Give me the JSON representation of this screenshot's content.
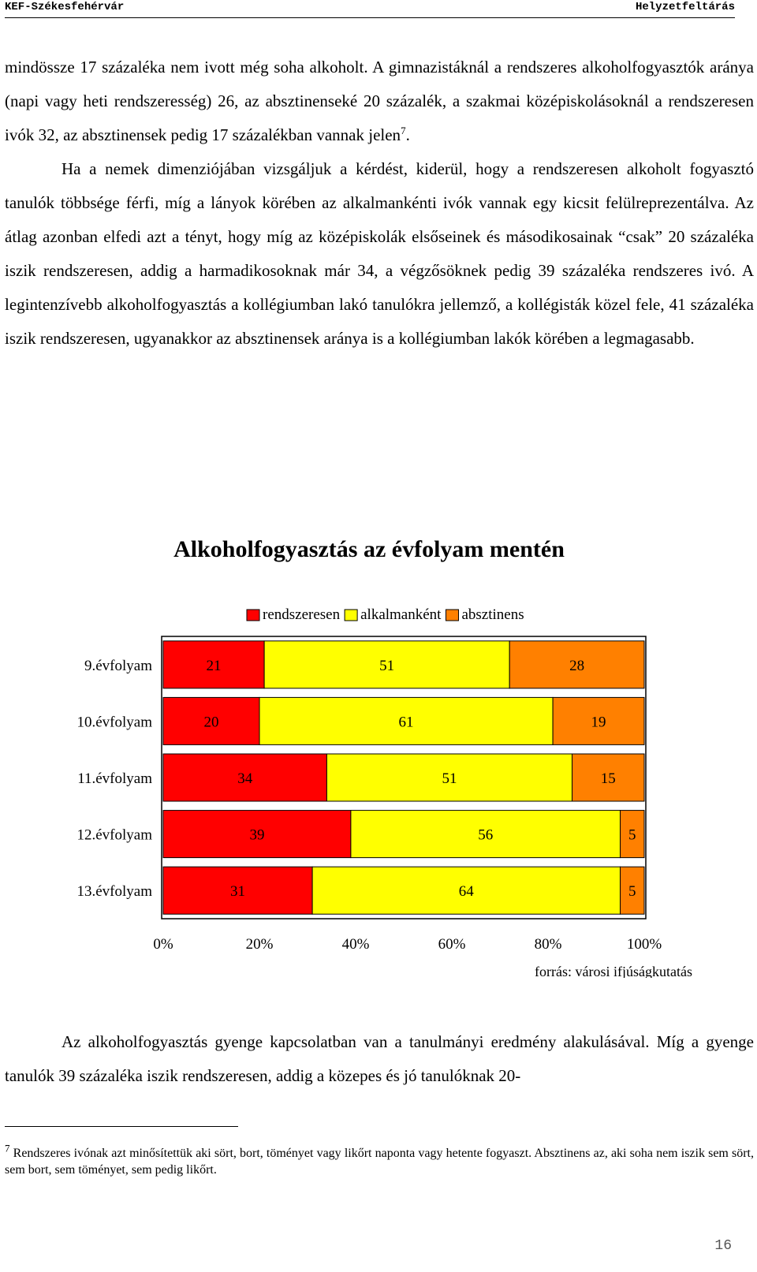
{
  "header": {
    "left": "KEF-Székesfehérvár",
    "right": "Helyzetfeltárás"
  },
  "paragraphs": [
    "mindössze 17 százaléka nem ivott még soha alkoholt. A gimnazistáknál a rendszeres alkoholfogyasztók aránya (napi vagy heti rendszeresség) 26, az absztinenseké 20 százalék, a szakmai középiskolásoknál a rendszeresen ivók 32, az absztinensek pedig 17 százalékban vannak jelen",
    "Ha a nemek dimenziójában vizsgáljuk a kérdést, kiderül, hogy a rendszeresen alkoholt fogyasztó tanulók többsége férfi, míg a lányok körében az alkalmankénti ivók vannak egy kicsit felülreprezentálva. Az átlag azonban elfedi azt a tényt, hogy míg az középiskolák elsőseinek és másodikosainak “csak” 20 százaléka iszik rendszeresen, addig a harmadikosoknak már 34, a végzősöknek pedig 39 százaléka rendszeres ivó. A legintenzívebb alkoholfogyasztás a kollégiumban lakó tanulókra jellemző, a kollégisták közel fele, 41 százaléka iszik rendszeresen, ugyanakkor az absztinensek aránya is a kollégiumban lakók körében a legmagasabb."
  ],
  "footnote_ref": "7",
  "para1_end": ".",
  "chart_data": {
    "type": "bar",
    "orientation": "horizontal",
    "stacked": true,
    "title": "Alkoholfogyasztás az évfolyam mentén",
    "categories": [
      "9.évfolyam",
      "10.évfolyam",
      "11.évfolyam",
      "12.évfolyam",
      "13.évfolyam"
    ],
    "series": [
      {
        "name": "rendszeresen",
        "color": "#FF0000",
        "values": [
          21,
          20,
          34,
          39,
          31
        ]
      },
      {
        "name": "alkalmanként",
        "color": "#FFFF00",
        "values": [
          51,
          61,
          51,
          56,
          64
        ]
      },
      {
        "name": "absztinens",
        "color": "#FF8000",
        "values": [
          28,
          19,
          15,
          5,
          5
        ]
      }
    ],
    "x_ticks": [
      "0%",
      "20%",
      "40%",
      "60%",
      "80%",
      "100%"
    ],
    "xlim": [
      0,
      100
    ],
    "legend_position": "top",
    "grid": false,
    "source": "forrás: városi ifjúságkutatás"
  },
  "paragraphs_after": [
    "Az alkoholfogyasztás gyenge kapcsolatban van a tanulmányi eredmény alakulásával. Míg a gyenge tanulók 39 százaléka iszik rendszeresen, addig a közepes és jó tanulóknak 20-"
  ],
  "footnote": {
    "number": "7",
    "text": "Rendszeres ivónak azt minősítettük aki sört, bort, töményet vagy likőrt naponta vagy hetente fogyaszt. Absztinens az, aki soha nem iszik sem sört, sem bort, sem töményet, sem pedig likőrt."
  },
  "page_number": "16"
}
